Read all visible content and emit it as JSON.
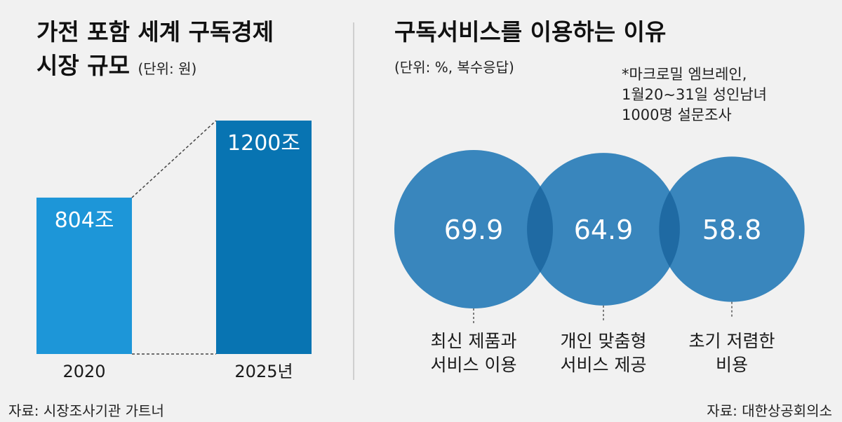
{
  "left_panel": {
    "title_line1": "가전 포함 세계 구독경제",
    "title_line2": "시장 규모",
    "unit": "(단위: 원)",
    "source": "자료: 시장조사기관 가트너"
  },
  "right_panel": {
    "title": "구독서비스를 이용하는 이유",
    "unit": "(단위: %, 복수응답)",
    "note_line1": "*마크로밀 엠브레인,",
    "note_line2": "1월20∼31일 성인남녀",
    "note_line3": "1000명 설문조사",
    "source": "자료: 대한상공회의소"
  },
  "colors": {
    "bar_2020": "#1d96d8",
    "bar_2025": "#0874b2",
    "circle": "#2e7fb9",
    "circle_overlap": "#1f6aa3",
    "background": "#f1f1f1"
  },
  "chart_data": [
    {
      "type": "bar",
      "categories": [
        "2020",
        "2025년"
      ],
      "values": [
        804,
        1200
      ],
      "value_labels": [
        "804조",
        "1200조"
      ],
      "title": "가전 포함 세계 구독경제 시장 규모",
      "ylabel": "(단위: 원)",
      "ylim": [
        0,
        1200
      ]
    },
    {
      "type": "bubble",
      "categories": [
        "최신 제품과 서비스 이용",
        "개인 맞춤형 서비스 제공",
        "초기 저렴한 비용"
      ],
      "label_lines": [
        [
          "최신 제품과",
          "서비스 이용"
        ],
        [
          "개인 맞춤형",
          "서비스 제공"
        ],
        [
          "초기 저렴한",
          "비용"
        ]
      ],
      "values": [
        69.9,
        64.9,
        58.8
      ],
      "value_labels": [
        "69.9",
        "64.9",
        "58.8"
      ],
      "title": "구독서비스를 이용하는 이유",
      "ylabel": "(단위: %, 복수응답)"
    }
  ]
}
